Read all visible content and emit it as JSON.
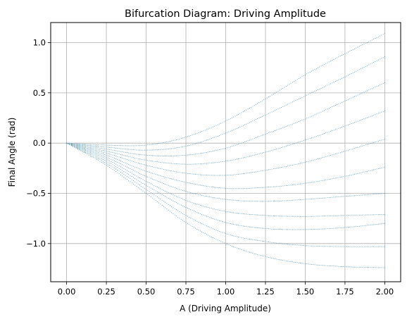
{
  "chart_data": {
    "type": "scatter",
    "title": "Bifurcation Diagram: Driving Amplitude",
    "xlabel": "A (Driving Amplitude)",
    "ylabel": "Final Angle (rad)",
    "xlim": [
      -0.1,
      2.1
    ],
    "ylim": [
      -1.38,
      1.2
    ],
    "xticks": [
      0.0,
      0.25,
      0.5,
      0.75,
      1.0,
      1.25,
      1.5,
      1.75,
      2.0
    ],
    "xtick_labels": [
      "0.00",
      "0.25",
      "0.50",
      "0.75",
      "1.00",
      "1.25",
      "1.50",
      "1.75",
      "2.00"
    ],
    "yticks": [
      -1.0,
      -0.5,
      0.0,
      0.5,
      1.0
    ],
    "ytick_labels": [
      "−1.0",
      "−0.5",
      "0.0",
      "0.5",
      "1.0"
    ],
    "grid": true,
    "marker_color": "#1f77b4",
    "curves": [
      {
        "x": [
          0.0,
          0.25,
          0.5,
          0.75,
          1.0,
          1.25,
          1.5,
          1.75,
          2.0
        ],
        "y": [
          0.0,
          -0.02,
          -0.02,
          0.06,
          0.22,
          0.44,
          0.68,
          0.89,
          1.09
        ]
      },
      {
        "x": [
          0.0,
          0.25,
          0.5,
          0.75,
          1.0,
          1.25,
          1.5,
          1.75,
          2.0
        ],
        "y": [
          0.0,
          -0.04,
          -0.07,
          -0.03,
          0.1,
          0.28,
          0.47,
          0.66,
          0.86
        ]
      },
      {
        "x": [
          0.0,
          0.25,
          0.5,
          0.75,
          1.0,
          1.25,
          1.5,
          1.75,
          2.0
        ],
        "y": [
          0.0,
          -0.06,
          -0.12,
          -0.12,
          -0.05,
          0.09,
          0.24,
          0.42,
          0.6
        ]
      },
      {
        "x": [
          0.0,
          0.25,
          0.5,
          0.75,
          1.0,
          1.25,
          1.5,
          1.75,
          2.0
        ],
        "y": [
          0.0,
          -0.08,
          -0.17,
          -0.21,
          -0.18,
          -0.09,
          0.03,
          0.17,
          0.32
        ]
      },
      {
        "x": [
          0.0,
          0.25,
          0.5,
          0.75,
          1.0,
          1.25,
          1.5,
          1.75,
          2.0
        ],
        "y": [
          0.0,
          -0.1,
          -0.22,
          -0.3,
          -0.32,
          -0.27,
          -0.19,
          -0.08,
          0.04
        ]
      },
      {
        "x": [
          0.0,
          0.25,
          0.5,
          0.75,
          1.0,
          1.25,
          1.5,
          1.75,
          2.0
        ],
        "y": [
          0.0,
          -0.12,
          -0.28,
          -0.39,
          -0.45,
          -0.44,
          -0.4,
          -0.33,
          -0.24
        ]
      },
      {
        "x": [
          0.0,
          0.25,
          0.5,
          0.75,
          1.0,
          1.25,
          1.5,
          1.75,
          2.0
        ],
        "y": [
          0.0,
          -0.14,
          -0.33,
          -0.48,
          -0.56,
          -0.58,
          -0.56,
          -0.53,
          -0.5
        ]
      },
      {
        "x": [
          0.0,
          0.25,
          0.5,
          0.75,
          1.0,
          1.25,
          1.5,
          1.75,
          2.0
        ],
        "y": [
          0.0,
          -0.16,
          -0.38,
          -0.57,
          -0.68,
          -0.72,
          -0.73,
          -0.72,
          -0.71
        ]
      },
      {
        "x": [
          0.0,
          0.25,
          0.5,
          0.75,
          1.0,
          1.25,
          1.5,
          1.75,
          2.0
        ],
        "y": [
          0.0,
          -0.18,
          -0.42,
          -0.64,
          -0.79,
          -0.85,
          -0.86,
          -0.84,
          -0.8
        ]
      },
      {
        "x": [
          0.0,
          0.25,
          0.5,
          0.75,
          1.0,
          1.25,
          1.5,
          1.75,
          2.0
        ],
        "y": [
          0.0,
          -0.2,
          -0.46,
          -0.72,
          -0.9,
          -0.98,
          -1.02,
          -1.03,
          -1.03
        ]
      },
      {
        "x": [
          0.0,
          0.25,
          0.5,
          0.75,
          1.0,
          1.25,
          1.5,
          1.75,
          2.0
        ],
        "y": [
          0.0,
          -0.22,
          -0.5,
          -0.79,
          -1.0,
          -1.13,
          -1.2,
          -1.23,
          -1.24
        ]
      }
    ]
  }
}
